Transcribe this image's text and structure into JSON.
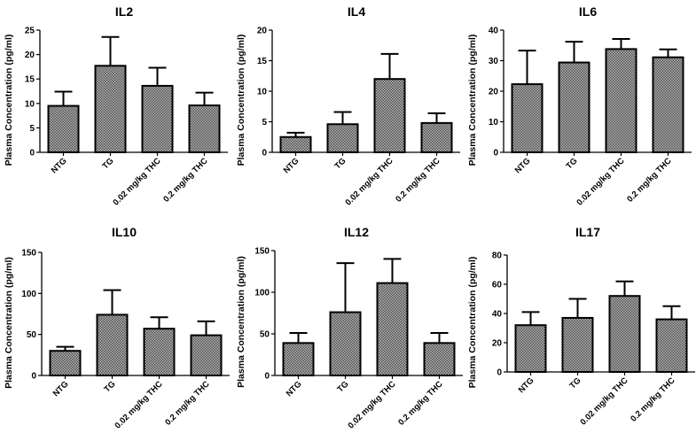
{
  "chart_data": [
    {
      "type": "bar",
      "title": "IL2",
      "ylabel": "Plasma Concentration (pg/ml)",
      "xlabel": "",
      "categories": [
        "NTG",
        "TG",
        "0.02 mg/kg THC",
        "0.2 mg/kg THC"
      ],
      "values": [
        9.5,
        17.7,
        13.6,
        9.6
      ],
      "errors": [
        2.9,
        5.9,
        3.7,
        2.6
      ],
      "ylim": [
        0,
        25
      ],
      "yticks": [
        0,
        5,
        10,
        15,
        20,
        25
      ]
    },
    {
      "type": "bar",
      "title": "IL4",
      "ylabel": "Plasma Concentration (pg/ml)",
      "xlabel": "",
      "categories": [
        "NTG",
        "TG",
        "0.02 mg/kg THC",
        "0.2 mg/kg THC"
      ],
      "values": [
        2.5,
        4.6,
        12.0,
        4.8
      ],
      "errors": [
        0.7,
        2.0,
        4.1,
        1.6
      ],
      "ylim": [
        0,
        20
      ],
      "yticks": [
        0,
        5,
        10,
        15,
        20
      ]
    },
    {
      "type": "bar",
      "title": "IL6",
      "ylabel": "Plasma Concentration (pg/ml)",
      "xlabel": "",
      "categories": [
        "NTG",
        "TG",
        "0.02 mg/kg THC",
        "0.2 mg/kg THC"
      ],
      "values": [
        22.3,
        29.4,
        33.8,
        31.1
      ],
      "errors": [
        11.0,
        6.8,
        3.3,
        2.6
      ],
      "ylim": [
        0,
        40
      ],
      "yticks": [
        0,
        10,
        20,
        30,
        40
      ]
    },
    {
      "type": "bar",
      "title": "IL10",
      "ylabel": "Plasma Concentration (pg/ml)",
      "xlabel": "",
      "categories": [
        "NTG",
        "TG",
        "0.02 mg/kg THC",
        "0.2 mg/kg THC"
      ],
      "values": [
        30,
        74,
        57,
        49
      ],
      "errors": [
        5,
        30,
        14,
        17
      ],
      "ylim": [
        0,
        150
      ],
      "yticks": [
        0,
        50,
        100,
        150
      ]
    },
    {
      "type": "bar",
      "title": "IL12",
      "ylabel": "Plasma Concentration (pg/ml)",
      "xlabel": "",
      "categories": [
        "NTG",
        "TG",
        "0.02 mg/kg THC",
        "0.2 mg/kg THC"
      ],
      "values": [
        39,
        76,
        111,
        39
      ],
      "errors": [
        12,
        59,
        29,
        12
      ],
      "ylim": [
        0,
        150
      ],
      "yticks": [
        0,
        50,
        100,
        150
      ]
    },
    {
      "type": "bar",
      "title": "IL17",
      "ylabel": "Plasma Concentration (pg/ml)",
      "xlabel": "",
      "categories": [
        "NTG",
        "TG",
        "0.02 mg/kg THC",
        "0.2 mg/kg THC"
      ],
      "values": [
        32,
        37,
        52,
        36
      ],
      "errors": [
        9,
        13,
        10,
        9
      ],
      "ylim": [
        0,
        80
      ],
      "yticks": [
        0,
        20,
        40,
        60,
        80
      ]
    }
  ],
  "colors": {
    "bar_fill": "#8a8a8a",
    "stroke": "#000000"
  }
}
